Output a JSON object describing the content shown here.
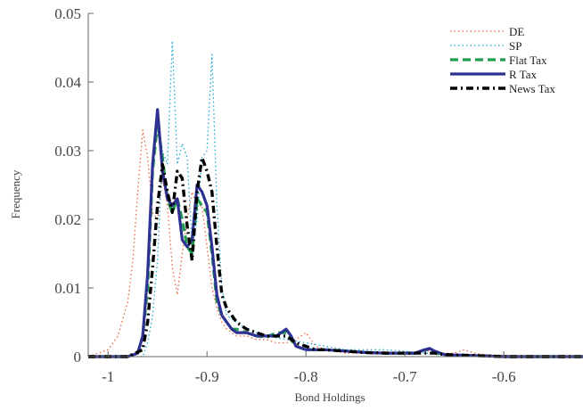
{
  "chart_data": {
    "type": "line",
    "title": "",
    "xlabel": "Bond Holdings",
    "ylabel": "Frequency",
    "xlim": [
      -1.02,
      -0.52
    ],
    "ylim": [
      0,
      0.05
    ],
    "xticks": [
      -1,
      -0.9,
      -0.8,
      -0.7,
      -0.6
    ],
    "xtick_labels": [
      "-1",
      "-0.9",
      "-0.8",
      "-0.7",
      "-0.6"
    ],
    "yticks": [
      0,
      0.01,
      0.02,
      0.03,
      0.04,
      0.05
    ],
    "ytick_labels": [
      "0",
      "0.01",
      "0.02",
      "0.03",
      "0.04",
      "0.05"
    ],
    "grid": false,
    "legend_position": "top-right",
    "series": [
      {
        "name": "DE",
        "color": "#e8643c",
        "dash": "1.5,3",
        "width": 1.3,
        "x": [
          -1.02,
          -1.0,
          -0.99,
          -0.98,
          -0.975,
          -0.97,
          -0.965,
          -0.96,
          -0.955,
          -0.95,
          -0.945,
          -0.94,
          -0.935,
          -0.93,
          -0.925,
          -0.92,
          -0.915,
          -0.91,
          -0.905,
          -0.9,
          -0.895,
          -0.89,
          -0.885,
          -0.88,
          -0.875,
          -0.87,
          -0.86,
          -0.85,
          -0.84,
          -0.83,
          -0.82,
          -0.81,
          -0.8,
          -0.795,
          -0.79,
          -0.78,
          -0.76,
          -0.74,
          -0.72,
          -0.7,
          -0.69,
          -0.68,
          -0.67,
          -0.66,
          -0.65,
          -0.64,
          -0.63,
          -0.62,
          -0.6,
          -0.58,
          -0.56,
          -0.54,
          -0.52
        ],
        "y": [
          0,
          0.001,
          0.003,
          0.008,
          0.014,
          0.024,
          0.033,
          0.029,
          0.021,
          0.02,
          0.026,
          0.022,
          0.013,
          0.009,
          0.015,
          0.02,
          0.024,
          0.022,
          0.022,
          0.016,
          0.01,
          0.007,
          0.005,
          0.004,
          0.0035,
          0.003,
          0.003,
          0.0025,
          0.0025,
          0.002,
          0.002,
          0.0025,
          0.0035,
          0.0025,
          0.0015,
          0.001,
          0.0005,
          0.0005,
          0.0005,
          0.0005,
          0.0005,
          0.001,
          0.0005,
          0.0005,
          0.0005,
          0.001,
          0.0005,
          0.0003,
          0.0002,
          0.0001,
          0,
          0,
          0
        ]
      },
      {
        "name": "SP",
        "color": "#1aa7d8",
        "dash": "1.5,3",
        "width": 1.3,
        "x": [
          -1.02,
          -1.0,
          -0.98,
          -0.97,
          -0.965,
          -0.96,
          -0.955,
          -0.95,
          -0.945,
          -0.94,
          -0.935,
          -0.93,
          -0.925,
          -0.92,
          -0.915,
          -0.91,
          -0.905,
          -0.9,
          -0.895,
          -0.89,
          -0.885,
          -0.88,
          -0.87,
          -0.86,
          -0.84,
          -0.82,
          -0.8,
          -0.78,
          -0.76,
          -0.74,
          -0.72,
          -0.7,
          -0.68,
          -0.66,
          -0.64,
          -0.62,
          -0.6,
          -0.58,
          -0.56,
          -0.54,
          -0.52
        ],
        "y": [
          0,
          0,
          0,
          0,
          0,
          0.002,
          0.006,
          0.014,
          0.03,
          0.028,
          0.046,
          0.028,
          0.031,
          0.029,
          0.016,
          0.02,
          0.029,
          0.03,
          0.044,
          0.022,
          0.01,
          0.006,
          0.005,
          0.004,
          0.003,
          0.0025,
          0.002,
          0.0015,
          0.001,
          0.001,
          0.001,
          0.0008,
          0.0005,
          0.0003,
          0.0002,
          0.0001,
          0,
          0,
          0,
          0,
          0
        ]
      },
      {
        "name": "Flat Tax",
        "color": "#1e9e4e",
        "dash": "9,5",
        "width": 3.2,
        "x": [
          -1.02,
          -0.98,
          -0.97,
          -0.965,
          -0.96,
          -0.955,
          -0.95,
          -0.945,
          -0.94,
          -0.935,
          -0.93,
          -0.925,
          -0.92,
          -0.915,
          -0.91,
          -0.905,
          -0.9,
          -0.895,
          -0.89,
          -0.885,
          -0.88,
          -0.875,
          -0.87,
          -0.86,
          -0.85,
          -0.84,
          -0.83,
          -0.82,
          -0.815,
          -0.81,
          -0.8,
          -0.79,
          -0.78,
          -0.76,
          -0.74,
          -0.72,
          -0.7,
          -0.69,
          -0.68,
          -0.675,
          -0.67,
          -0.66,
          -0.64,
          -0.62,
          -0.6,
          -0.58,
          -0.56,
          -0.54,
          -0.52
        ],
        "y": [
          0,
          0,
          0.0005,
          0.003,
          0.01,
          0.027,
          0.034,
          0.029,
          0.023,
          0.021,
          0.023,
          0.02,
          0.016,
          0.015,
          0.023,
          0.022,
          0.021,
          0.015,
          0.008,
          0.006,
          0.005,
          0.004,
          0.004,
          0.0035,
          0.003,
          0.0028,
          0.0035,
          0.0035,
          0.0025,
          0.0015,
          0.001,
          0.001,
          0.001,
          0.0008,
          0.0006,
          0.0005,
          0.0005,
          0.0005,
          0.001,
          0.001,
          0.0005,
          0.0003,
          0.0002,
          0.0001,
          0,
          0,
          0,
          0,
          0
        ]
      },
      {
        "name": "R Tax",
        "color": "#2e3192",
        "dash": "",
        "width": 3.2,
        "x": [
          -1.02,
          -0.98,
          -0.97,
          -0.965,
          -0.96,
          -0.955,
          -0.95,
          -0.945,
          -0.94,
          -0.935,
          -0.93,
          -0.925,
          -0.92,
          -0.915,
          -0.91,
          -0.905,
          -0.9,
          -0.895,
          -0.89,
          -0.885,
          -0.88,
          -0.875,
          -0.87,
          -0.86,
          -0.85,
          -0.84,
          -0.83,
          -0.82,
          -0.815,
          -0.81,
          -0.8,
          -0.79,
          -0.78,
          -0.76,
          -0.74,
          -0.72,
          -0.7,
          -0.69,
          -0.68,
          -0.675,
          -0.67,
          -0.66,
          -0.64,
          -0.62,
          -0.6,
          -0.58,
          -0.56,
          -0.54,
          -0.52
        ],
        "y": [
          0,
          0,
          0.0005,
          0.003,
          0.012,
          0.028,
          0.036,
          0.027,
          0.023,
          0.022,
          0.023,
          0.017,
          0.016,
          0.017,
          0.025,
          0.024,
          0.022,
          0.016,
          0.009,
          0.006,
          0.005,
          0.004,
          0.0035,
          0.0035,
          0.003,
          0.003,
          0.003,
          0.004,
          0.003,
          0.0015,
          0.001,
          0.001,
          0.001,
          0.0008,
          0.0006,
          0.0005,
          0.0005,
          0.0005,
          0.001,
          0.0012,
          0.0008,
          0.0003,
          0.0002,
          0.0001,
          0,
          0,
          0,
          0,
          0
        ]
      },
      {
        "name": "News Tax",
        "color": "#000000",
        "dash": "8,4,2,4",
        "width": 3.4,
        "x": [
          -1.02,
          -0.98,
          -0.965,
          -0.96,
          -0.955,
          -0.95,
          -0.945,
          -0.94,
          -0.935,
          -0.93,
          -0.925,
          -0.92,
          -0.915,
          -0.91,
          -0.905,
          -0.9,
          -0.895,
          -0.89,
          -0.885,
          -0.88,
          -0.875,
          -0.87,
          -0.86,
          -0.85,
          -0.84,
          -0.83,
          -0.82,
          -0.81,
          -0.8,
          -0.79,
          -0.78,
          -0.76,
          -0.74,
          -0.72,
          -0.7,
          -0.69,
          -0.68,
          -0.675,
          -0.67,
          -0.66,
          -0.64,
          -0.62,
          -0.6,
          -0.58,
          -0.56,
          -0.54,
          -0.52
        ],
        "y": [
          0,
          0,
          0.001,
          0.005,
          0.013,
          0.022,
          0.028,
          0.024,
          0.021,
          0.027,
          0.026,
          0.019,
          0.014,
          0.024,
          0.029,
          0.027,
          0.024,
          0.016,
          0.009,
          0.007,
          0.006,
          0.005,
          0.004,
          0.0035,
          0.003,
          0.003,
          0.003,
          0.002,
          0.0015,
          0.001,
          0.001,
          0.0008,
          0.0006,
          0.0005,
          0.0005,
          0.0005,
          0.0005,
          0.0005,
          0.0005,
          0.0003,
          0.0002,
          0.0001,
          0,
          0,
          0,
          0,
          0
        ]
      }
    ]
  }
}
